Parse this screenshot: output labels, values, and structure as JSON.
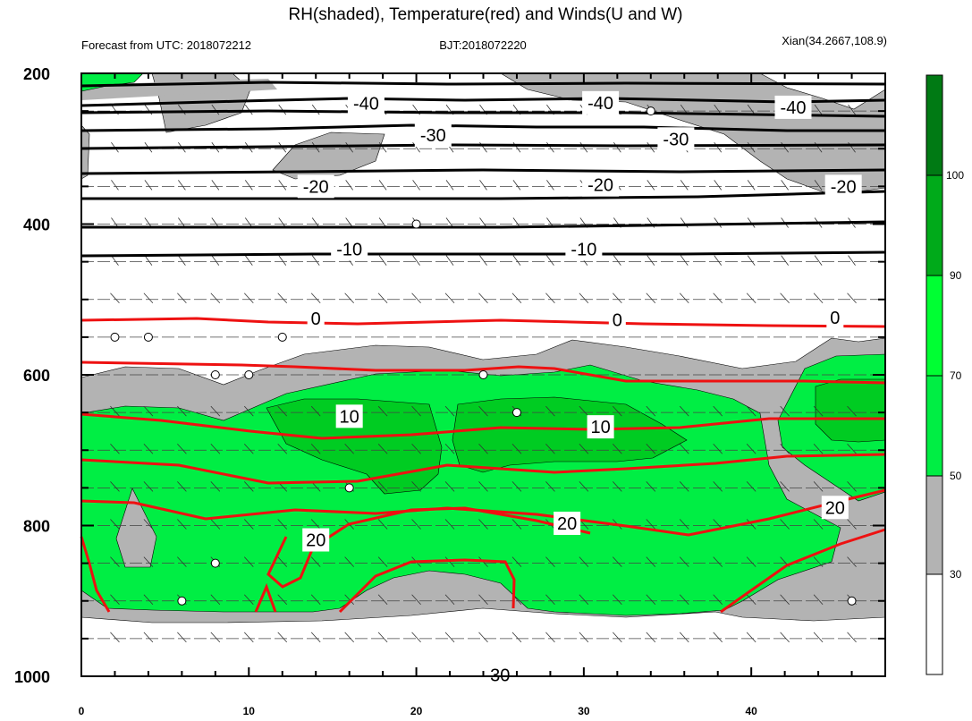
{
  "chart_data": {
    "type": "contour",
    "title": "RH(shaded), Temperature(red) and Winds(U and W)",
    "left_string": "Forecast from UTC: 2018072212",
    "center_string": "BJT:2018072220",
    "right_string": "Xian(34.2667,108.9)",
    "xlim": [
      0,
      48
    ],
    "ylim": [
      1000,
      200
    ],
    "x_ticks": [
      "0",
      "10",
      "20",
      "30",
      "40"
    ],
    "y_ticks": [
      "200",
      "400",
      "600",
      "800",
      "1000"
    ],
    "rh_colorbar": {
      "levels": [
        "30",
        "50",
        "70",
        "90",
        "100"
      ],
      "colors": [
        "#ffffff",
        "#b3b3b3",
        "#00ee44",
        "#00cc22",
        "#00aa1a",
        "#007a14"
      ]
    },
    "temperature_labels": [
      {
        "label": "-40",
        "x": 17.0,
        "p": 240
      },
      {
        "label": "-40",
        "x": 31.0,
        "p": 239
      },
      {
        "label": "-40",
        "x": 42.5,
        "p": 245
      },
      {
        "label": "-30",
        "x": 21.0,
        "p": 282
      },
      {
        "label": "-30",
        "x": 35.5,
        "p": 287
      },
      {
        "label": "-20",
        "x": 14.0,
        "p": 350
      },
      {
        "label": "-20",
        "x": 31.0,
        "p": 348
      },
      {
        "label": "-20",
        "x": 45.5,
        "p": 350
      },
      {
        "label": "-10",
        "x": 16.0,
        "p": 433
      },
      {
        "label": "-10",
        "x": 30.0,
        "p": 433
      },
      {
        "label": "0",
        "x": 14.0,
        "p": 525
      },
      {
        "label": "0",
        "x": 32.0,
        "p": 527
      },
      {
        "label": "0",
        "x": 45.0,
        "p": 524
      },
      {
        "label": "10",
        "x": 16.0,
        "p": 655
      },
      {
        "label": "10",
        "x": 31.0,
        "p": 669
      },
      {
        "label": "20",
        "x": 14.0,
        "p": 819
      },
      {
        "label": "20",
        "x": 29.0,
        "p": 797
      },
      {
        "label": "20",
        "x": 45.0,
        "p": 776
      },
      {
        "label": "30",
        "x": 25.0,
        "p": 998
      }
    ],
    "wind_calm_points": [
      {
        "x": 2,
        "p": 550
      },
      {
        "x": 4,
        "p": 550
      },
      {
        "x": 12,
        "p": 550
      },
      {
        "x": 8,
        "p": 600
      },
      {
        "x": 10,
        "p": 600
      },
      {
        "x": 24,
        "p": 600
      },
      {
        "x": 20,
        "p": 400
      },
      {
        "x": 34,
        "p": 250
      },
      {
        "x": 26,
        "p": 650
      },
      {
        "x": 16,
        "p": 750
      },
      {
        "x": 8,
        "p": 850
      },
      {
        "x": 6,
        "p": 900
      },
      {
        "x": 46,
        "p": 900
      }
    ]
  }
}
